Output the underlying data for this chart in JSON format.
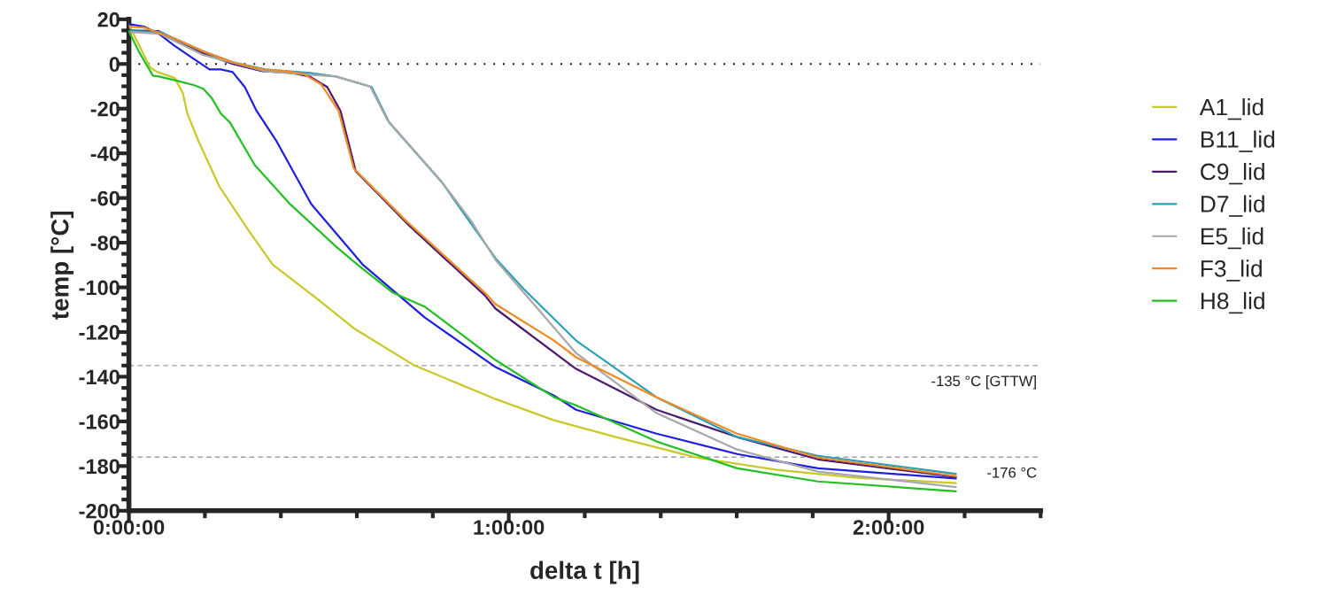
{
  "chart_data": {
    "type": "line",
    "xlabel": "delta t [h]",
    "ylabel": "temp [°C]",
    "xlim": [
      0,
      2.4
    ],
    "ylim": [
      -200,
      20
    ],
    "xticks": [
      {
        "value": 0,
        "label": "0:00:00"
      },
      {
        "value": 0.2,
        "label": null
      },
      {
        "value": 0.4,
        "label": null
      },
      {
        "value": 0.6,
        "label": null
      },
      {
        "value": 0.8,
        "label": null
      },
      {
        "value": 1,
        "label": "1:00:00"
      },
      {
        "value": 1.2,
        "label": null
      },
      {
        "value": 1.4,
        "label": null
      },
      {
        "value": 1.6,
        "label": null
      },
      {
        "value": 1.8,
        "label": null
      },
      {
        "value": 2,
        "label": "2:00:00"
      },
      {
        "value": 2.2,
        "label": null
      },
      {
        "value": 2.4,
        "label": null
      }
    ],
    "yticks": [
      20,
      {
        "value": 15,
        "label": null
      },
      {
        "value": 10,
        "label": null
      },
      {
        "value": 5,
        "label": null
      },
      0,
      {
        "value": -5,
        "label": null
      },
      {
        "value": -10,
        "label": null
      },
      {
        "value": -15,
        "label": null
      },
      -20,
      {
        "value": -25,
        "label": null
      },
      {
        "value": -30,
        "label": null
      },
      {
        "value": -35,
        "label": null
      },
      -40,
      {
        "value": -45,
        "label": null
      },
      {
        "value": -50,
        "label": null
      },
      {
        "value": -55,
        "label": null
      },
      -60,
      {
        "value": -65,
        "label": null
      },
      {
        "value": -70,
        "label": null
      },
      {
        "value": -75,
        "label": null
      },
      -80,
      {
        "value": -85,
        "label": null
      },
      {
        "value": -90,
        "label": null
      },
      {
        "value": -95,
        "label": null
      },
      -100,
      {
        "value": -105,
        "label": null
      },
      {
        "value": -110,
        "label": null
      },
      {
        "value": -115,
        "label": null
      },
      -120,
      {
        "value": -125,
        "label": null
      },
      {
        "value": -130,
        "label": null
      },
      {
        "value": -135,
        "label": null
      },
      -140,
      {
        "value": -145,
        "label": null
      },
      {
        "value": -150,
        "label": null
      },
      {
        "value": -155,
        "label": null
      },
      -160,
      {
        "value": -165,
        "label": null
      },
      {
        "value": -170,
        "label": null
      },
      {
        "value": -175,
        "label": null
      },
      -180,
      {
        "value": -185,
        "label": null
      },
      {
        "value": -190,
        "label": null
      },
      {
        "value": -195,
        "label": null
      },
      -200
    ],
    "grid": false,
    "legend": "right",
    "marker": "none",
    "line_style": "solid",
    "ref_lines": [
      {
        "axis": "y",
        "value": 0,
        "label": null,
        "color": "#000000",
        "line_style": "dotted"
      },
      {
        "axis": "y",
        "value": -135,
        "label": "-135 °C [GTTW]",
        "color": "#a0a0a0",
        "line_style": "dashed"
      },
      {
        "axis": "y",
        "value": -176,
        "label": "-176 °C",
        "color": "#a0a0a0",
        "line_style": "dashed"
      }
    ],
    "series": [
      {
        "name": "A1_lid",
        "color": "#c8c828",
        "x": [
          0,
          0.056,
          0.075,
          0.121,
          0.142,
          0.154,
          0.182,
          0.238,
          0.312,
          0.378,
          0.499,
          0.592,
          0.751,
          0.965,
          1.119,
          1.282,
          1.494,
          1.706,
          1.918,
          2.177
        ],
        "values": [
          17.5,
          -1.6,
          -3.6,
          -6.3,
          -13.1,
          -22.2,
          -34.1,
          -54.8,
          -73.8,
          -89.7,
          -105.6,
          -118.3,
          -134.9,
          -150,
          -159.5,
          -167,
          -176.2,
          -181.7,
          -185.3,
          -187.6
        ]
      },
      {
        "name": "B11_lid",
        "color": "#1f1fe0",
        "x": [
          0,
          0.04,
          0.079,
          0.119,
          0.166,
          0.212,
          0.242,
          0.273,
          0.305,
          0.336,
          0.387,
          0.48,
          0.615,
          0.779,
          0.965,
          1.119,
          1.177,
          1.389,
          1.601,
          1.814,
          2.177
        ],
        "values": [
          17.9,
          16.7,
          13.5,
          8.3,
          2.8,
          -2.4,
          -2.4,
          -3.6,
          -10.3,
          -21,
          -34.1,
          -62.7,
          -89.7,
          -113.5,
          -135.7,
          -148.4,
          -154.8,
          -165.5,
          -174.6,
          -181,
          -185.6
        ]
      },
      {
        "name": "C9_lid",
        "color": "#4b1a6e",
        "x": [
          0,
          0.079,
          0.196,
          0.273,
          0.352,
          0.429,
          0.476,
          0.522,
          0.557,
          0.597,
          0.737,
          0.937,
          0.965,
          1.177,
          1.389,
          1.601,
          1.814,
          2.177
        ],
        "values": [
          15,
          14.7,
          4.8,
          0,
          -3.2,
          -4,
          -5.6,
          -10.3,
          -21,
          -48,
          -72.2,
          -103.6,
          -109.5,
          -136.5,
          -154.8,
          -167,
          -177,
          -184.9
        ]
      },
      {
        "name": "D7_lid",
        "color": "#2aa0b8",
        "x": [
          0,
          0.082,
          0.196,
          0.273,
          0.359,
          0.476,
          0.545,
          0.639,
          0.685,
          0.825,
          0.965,
          1.0396,
          1.177,
          1.389,
          1.601,
          1.814,
          2.177
        ],
        "values": [
          14.7,
          14.3,
          5.6,
          0.8,
          -2.4,
          -4,
          -5.6,
          -10.3,
          -26.2,
          -53.2,
          -87,
          -100.8,
          -123.8,
          -149.2,
          -167,
          -175.4,
          -183.5
        ]
      },
      {
        "name": "E5_lid",
        "color": "#a8a8a8",
        "x": [
          0,
          0.082,
          0.196,
          0.359,
          0.476,
          0.545,
          0.635,
          0.68,
          0.82,
          0.9,
          0.965,
          1.177,
          1.389,
          1.601,
          1.814,
          2.177
        ],
        "values": [
          14.3,
          13.5,
          4,
          -3.2,
          -4.8,
          -5.6,
          -10,
          -25,
          -52,
          -70,
          -87.7,
          -129.4,
          -156.3,
          -172.6,
          -182.5,
          -189.4
        ]
      },
      {
        "name": "F3_lid",
        "color": "#f08a24",
        "x": [
          0,
          0.04,
          0.119,
          0.196,
          0.273,
          0.352,
          0.413,
          0.459,
          0.506,
          0.552,
          0.592,
          0.732,
          0.937,
          0.965,
          1.119,
          1.177,
          1.389,
          1.601,
          1.814,
          2.177
        ],
        "values": [
          16.7,
          16.3,
          11.5,
          5.6,
          0.8,
          -2.4,
          -3.2,
          -4.4,
          -9.1,
          -21,
          -46.8,
          -70.6,
          -102.4,
          -107.5,
          -123.8,
          -131.3,
          -149.2,
          -165.5,
          -176.2,
          -184.5
        ]
      },
      {
        "name": "H8_lid",
        "color": "#22c022",
        "x": [
          0,
          0.026,
          0.063,
          0.079,
          0.126,
          0.172,
          0.196,
          0.219,
          0.242,
          0.266,
          0.331,
          0.424,
          0.545,
          0.601,
          0.695,
          0.779,
          0.965,
          1.119,
          1.177,
          1.389,
          1.601,
          1.814,
          2.177
        ],
        "values": [
          14.7,
          5.6,
          -5.2,
          -5.6,
          -7.5,
          -9.5,
          -11.1,
          -15.5,
          -22.2,
          -26.2,
          -45.2,
          -62.7,
          -81.7,
          -89.7,
          -102.4,
          -108.7,
          -132.5,
          -149.2,
          -152.8,
          -169,
          -181,
          -186.9,
          -191.3
        ]
      }
    ]
  }
}
